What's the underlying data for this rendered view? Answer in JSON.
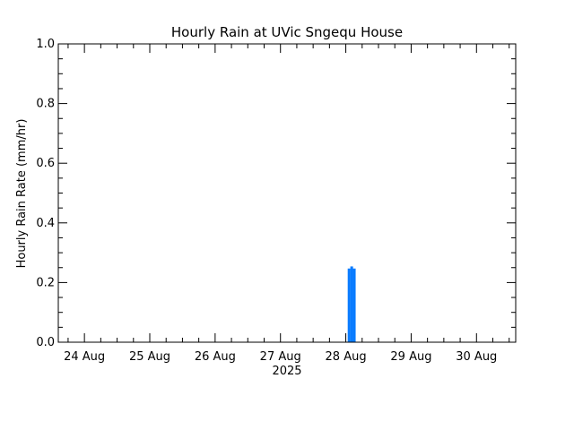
{
  "chart_data": {
    "type": "bar",
    "title": "Hourly Rain at UVic Sngequ House",
    "ylabel": "Hourly Rain Rate (mm/hr)",
    "xlabel": "2025",
    "ylim": [
      0.0,
      1.0
    ],
    "yticks": [
      "0.0",
      "0.2",
      "0.4",
      "0.6",
      "0.8",
      "1.0"
    ],
    "xticks": [
      "24 Aug",
      "25 Aug",
      "26 Aug",
      "27 Aug",
      "28 Aug",
      "29 Aug",
      "30 Aug"
    ],
    "x_day_range": [
      23.6,
      30.6
    ],
    "bars": [
      {
        "day": 28.05,
        "value": 0.247
      },
      {
        "day": 28.09,
        "value": 0.254
      },
      {
        "day": 28.13,
        "value": 0.247
      }
    ],
    "colors": {
      "bar": "#0a7cff",
      "axis": "#000000"
    }
  }
}
